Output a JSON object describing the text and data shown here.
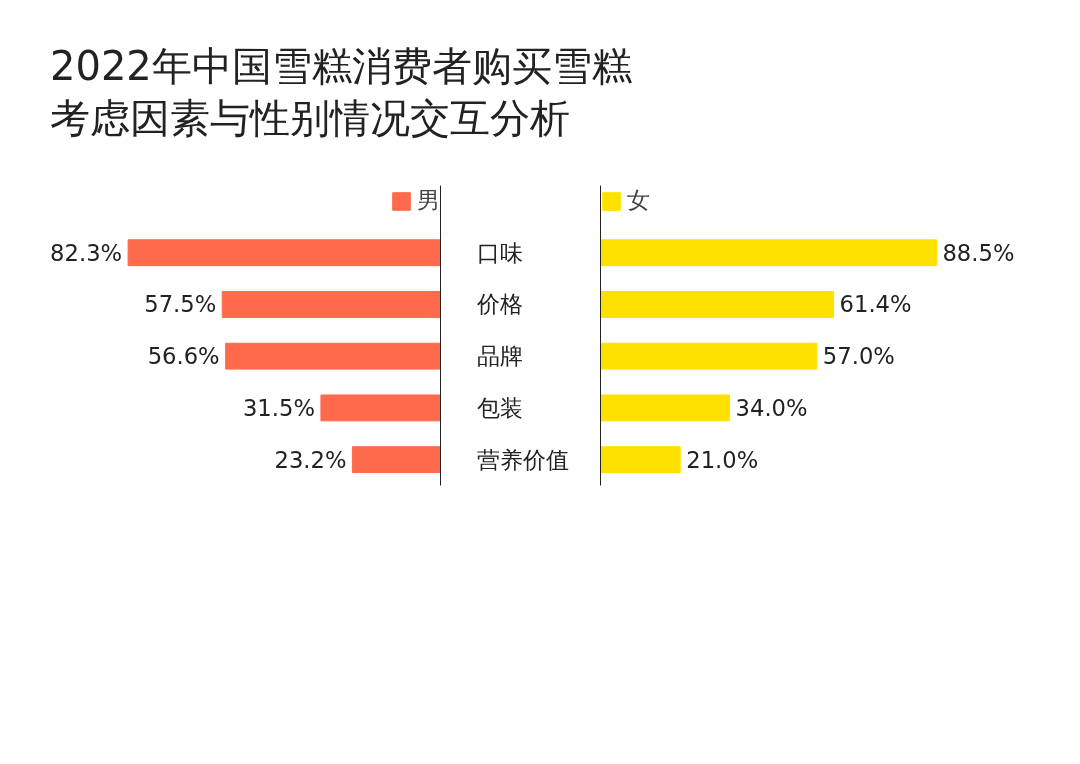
{
  "chart_data": [
    {
      "type": "bar",
      "orientation": "horizontal",
      "title": "2022年中国雪糕消费者购买雪糕考虑因素与性别情况交互分析",
      "categories": [
        "口味",
        "价格",
        "品牌",
        "包装",
        "营养价值"
      ],
      "series": [
        {
          "name": "男",
          "color": "#ff6a4d",
          "values": [
            82.3,
            57.5,
            56.6,
            31.5,
            23.2
          ],
          "value_labels": [
            "82.3%",
            "57.5%",
            "56.6%",
            "31.5%",
            "23.2%"
          ]
        }
      ],
      "legend": "top",
      "grid": false
    },
    {
      "type": "bar",
      "orientation": "horizontal",
      "categories": [
        null,
        null,
        null,
        null,
        null
      ],
      "series": [
        {
          "name": "女",
          "color": "#ffe100",
          "values": [
            88.5,
            61.4,
            57.0,
            34.0,
            21.0
          ],
          "value_labels": [
            "88.5%",
            "61.4%",
            "57.0%",
            "34.0%",
            "21.0%"
          ]
        }
      ],
      "legend": "top",
      "grid": false,
      "tick_labels": false
    }
  ]
}
